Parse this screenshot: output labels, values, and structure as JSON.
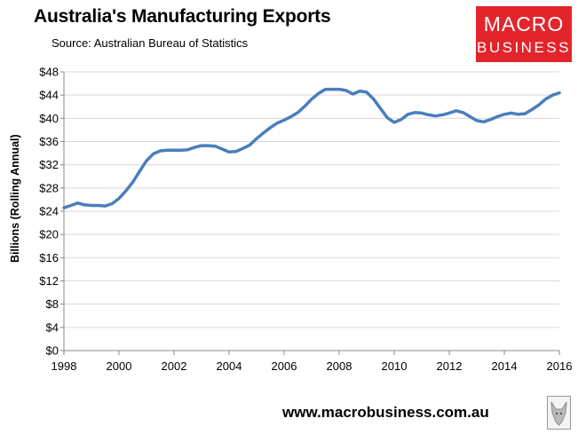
{
  "header": {
    "title": "Australia's Manufacturing Exports",
    "source": "Source: Australian Bureau of Statistics"
  },
  "logo": {
    "line1": "MACRO",
    "line2": "BUSINESS"
  },
  "footer": {
    "url": "www.macrobusiness.com.au"
  },
  "colors": {
    "line": "#4a7ebb",
    "logo_bg": "#e3252b",
    "gridline": "#d9d9d9"
  },
  "chart_data": {
    "type": "line",
    "title": "Australia's Manufacturing Exports",
    "subtitle": "Source: Australian Bureau of Statistics",
    "ylabel": "Billions (Rolling Annual)",
    "xlabel": "",
    "xlim": [
      1998,
      2016
    ],
    "ylim": [
      0,
      48
    ],
    "x_ticks": [
      "1998",
      "2000",
      "2002",
      "2004",
      "2006",
      "2008",
      "2010",
      "2012",
      "2014",
      "2016"
    ],
    "y_ticks": [
      "$0",
      "$4",
      "$8",
      "$12",
      "$16",
      "$20",
      "$24",
      "$28",
      "$32",
      "$36",
      "$40",
      "$44",
      "$48"
    ],
    "grid": "horizontal",
    "series": [
      {
        "x": [
          1998.0,
          1998.25,
          1998.5,
          1998.75,
          1999.0,
          1999.25,
          1999.5,
          1999.75,
          2000.0,
          2000.25,
          2000.5,
          2000.75,
          2001.0,
          2001.25,
          2001.5,
          2001.75,
          2002.0,
          2002.25,
          2002.5,
          2002.75,
          2003.0,
          2003.25,
          2003.5,
          2003.75,
          2004.0,
          2004.25,
          2004.5,
          2004.75,
          2005.0,
          2005.25,
          2005.5,
          2005.75,
          2006.0,
          2006.25,
          2006.5,
          2006.75,
          2007.0,
          2007.25,
          2007.5,
          2007.75,
          2008.0,
          2008.25,
          2008.5,
          2008.75,
          2009.0,
          2009.25,
          2009.5,
          2009.75,
          2010.0,
          2010.25,
          2010.5,
          2010.75,
          2011.0,
          2011.25,
          2011.5,
          2011.75,
          2012.0,
          2012.25,
          2012.5,
          2012.75,
          2013.0,
          2013.25,
          2013.5,
          2013.75,
          2014.0,
          2014.25,
          2014.5,
          2014.75,
          2015.0,
          2015.25,
          2015.5,
          2015.75,
          2016.0
        ],
        "values": [
          24.6,
          25.0,
          25.4,
          25.1,
          25.0,
          25.0,
          24.9,
          25.3,
          26.2,
          27.5,
          29.0,
          30.9,
          32.7,
          33.9,
          34.4,
          34.5,
          34.5,
          34.5,
          34.6,
          35.0,
          35.3,
          35.3,
          35.2,
          34.7,
          34.2,
          34.3,
          34.8,
          35.4,
          36.5,
          37.5,
          38.4,
          39.2,
          39.7,
          40.3,
          41.0,
          42.1,
          43.3,
          44.3,
          45.0,
          45.0,
          45.0,
          44.8,
          44.2,
          44.7,
          44.5,
          43.3,
          41.7,
          40.1,
          39.3,
          39.8,
          40.7,
          41.0,
          40.9,
          40.6,
          40.4,
          40.6,
          40.9,
          41.3,
          41.0,
          40.3,
          39.6,
          39.4,
          39.8,
          40.3,
          40.7,
          40.9,
          40.7,
          40.8,
          41.5,
          42.3,
          43.3,
          44.0,
          44.4
        ]
      }
    ]
  }
}
